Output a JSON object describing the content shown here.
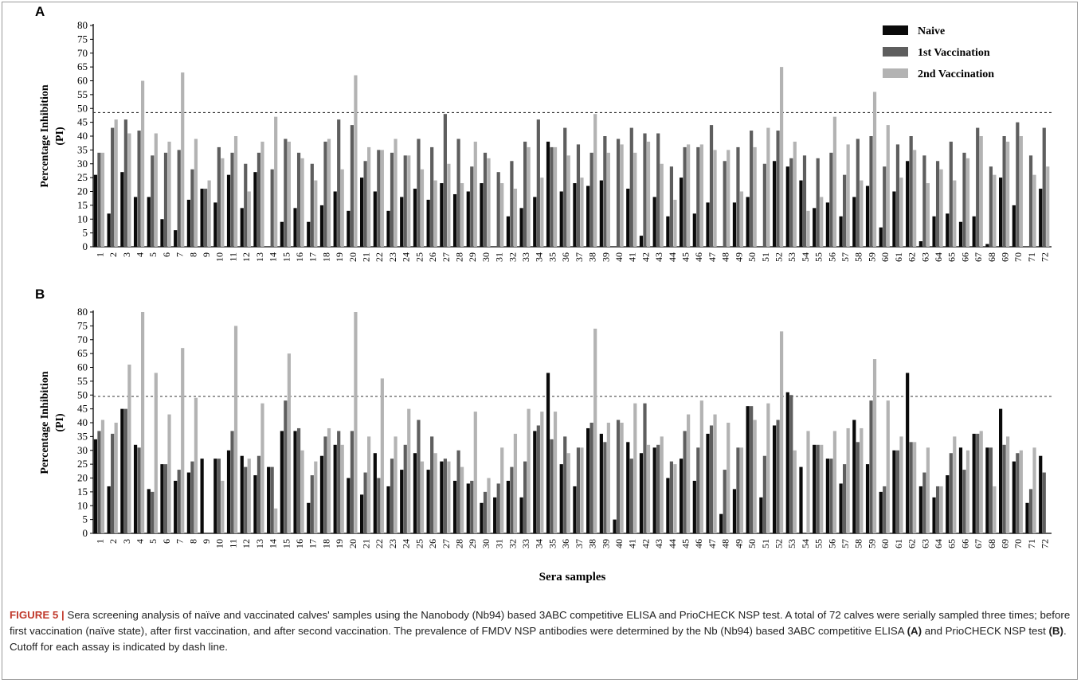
{
  "caption": {
    "figure_label": "FIGURE 5 |",
    "text_1": " Sera screening analysis of naïve and vaccinated calves' samples using the Nanobody (Nb94) based 3ABC competitive ELISA and PrioCHECK NSP test. A total of 72 calves were serially sampled three times; before first vaccination (naïve state), after first vaccination, and after second vaccination. The prevalence of FMDV NSP antibodies were determined by the Nb (Nb94) based 3ABC competitive ELISA ",
    "ref_a": "(A)",
    "text_2": " and PrioCHECK NSP test ",
    "ref_b": "(B)",
    "text_3": ". Cutoff for each assay is indicated by dash line."
  },
  "colors": {
    "naive": "#0a0a0a",
    "first": "#5e5e5e",
    "second": "#b3b3b3",
    "cutoff": "#333333"
  },
  "chart_data": [
    {
      "panel": "A",
      "type": "bar",
      "ylabel": "Percentage Inhibition\n(PI)",
      "xlabel": "",
      "ylim": [
        0,
        80
      ],
      "yticks": [
        0,
        5,
        10,
        15,
        20,
        25,
        30,
        35,
        40,
        45,
        50,
        55,
        60,
        65,
        70,
        75,
        80
      ],
      "cutoff": 48.5,
      "legend_position": "top-right",
      "categories": [
        "1",
        "2",
        "3",
        "4",
        "5",
        "6",
        "7",
        "8",
        "9",
        "10",
        "11",
        "12",
        "13",
        "14",
        "15",
        "16",
        "17",
        "18",
        "19",
        "20",
        "21",
        "22",
        "23",
        "24",
        "25",
        "26",
        "27",
        "28",
        "29",
        "30",
        "31",
        "32",
        "33",
        "34",
        "35",
        "36",
        "37",
        "38",
        "39",
        "40",
        "41",
        "42",
        "43",
        "44",
        "45",
        "46",
        "47",
        "48",
        "49",
        "50",
        "51",
        "52",
        "53",
        "54",
        "55",
        "56",
        "57",
        "58",
        "59",
        "60",
        "61",
        "62",
        "63",
        "64",
        "65",
        "66",
        "67",
        "68",
        "69",
        "70",
        "71",
        "72"
      ],
      "series": [
        {
          "name": "Naive",
          "values": [
            26,
            12,
            27,
            18,
            18,
            10,
            6,
            17,
            21,
            16,
            26,
            14,
            27,
            0,
            9,
            14,
            9,
            15,
            20,
            13,
            25,
            20,
            13,
            18,
            21,
            17,
            23,
            19,
            20,
            23,
            0,
            11,
            14,
            18,
            38,
            20,
            23,
            22,
            24,
            0,
            21,
            4,
            18,
            11,
            25,
            12,
            16,
            0,
            16,
            18,
            0,
            31,
            29,
            24,
            14,
            16,
            11,
            18,
            22,
            7,
            20,
            31,
            2,
            11,
            12,
            9,
            11,
            1,
            25,
            15,
            0,
            21
          ]
        },
        {
          "name": "1st Vaccination",
          "values": [
            34,
            43,
            46,
            42,
            33,
            34,
            35,
            28,
            21,
            36,
            34,
            30,
            34,
            28,
            39,
            34,
            30,
            38,
            46,
            44,
            31,
            35,
            34,
            33,
            39,
            36,
            48,
            39,
            29,
            34,
            27,
            31,
            38,
            46,
            36,
            43,
            37,
            34,
            40,
            39,
            43,
            41,
            41,
            29,
            36,
            36,
            44,
            31,
            36,
            42,
            30,
            42,
            32,
            33,
            32,
            34,
            26,
            39,
            40,
            29,
            37,
            40,
            33,
            31,
            38,
            34,
            43,
            29,
            40,
            45,
            33,
            43
          ]
        },
        {
          "name": "2nd Vaccination",
          "values": [
            34,
            46,
            41,
            60,
            41,
            38,
            63,
            39,
            24,
            32,
            40,
            20,
            38,
            47,
            38,
            32,
            24,
            39,
            28,
            62,
            36,
            35,
            39,
            33,
            28,
            24,
            30,
            23,
            38,
            32,
            23,
            21,
            36,
            25,
            36,
            33,
            25,
            48,
            34,
            37,
            34,
            38,
            30,
            17,
            37,
            37,
            35,
            35,
            20,
            36,
            43,
            65,
            38,
            13,
            18,
            47,
            37,
            24,
            56,
            44,
            25,
            35,
            23,
            28,
            24,
            32,
            40,
            26,
            38,
            40,
            26,
            29
          ]
        }
      ]
    },
    {
      "panel": "B",
      "type": "bar",
      "ylabel": "Percentage Inhibition\n(PI)",
      "xlabel": "Sera samples",
      "ylim": [
        0,
        80
      ],
      "yticks": [
        0,
        5,
        10,
        15,
        20,
        25,
        30,
        35,
        40,
        45,
        50,
        55,
        60,
        65,
        70,
        75,
        80
      ],
      "cutoff": 49.5,
      "categories": [
        "1",
        "2",
        "3",
        "4",
        "5",
        "6",
        "7",
        "8",
        "9",
        "10",
        "11",
        "12",
        "13",
        "14",
        "15",
        "16",
        "17",
        "18",
        "19",
        "20",
        "21",
        "22",
        "23",
        "24",
        "25",
        "26",
        "27",
        "28",
        "29",
        "30",
        "31",
        "32",
        "33",
        "34",
        "35",
        "36",
        "37",
        "38",
        "39",
        "40",
        "41",
        "42",
        "43",
        "44",
        "45",
        "46",
        "47",
        "48",
        "49",
        "50",
        "51",
        "52",
        "53",
        "54",
        "55",
        "56",
        "57",
        "58",
        "59",
        "60",
        "61",
        "62",
        "63",
        "64",
        "65",
        "66",
        "67",
        "68",
        "69",
        "70",
        "71",
        "72"
      ],
      "series": [
        {
          "name": "Naive",
          "values": [
            34,
            17,
            45,
            32,
            16,
            25,
            19,
            22,
            27,
            27,
            30,
            28,
            21,
            24,
            37,
            37,
            11,
            28,
            32,
            20,
            14,
            29,
            17,
            23,
            29,
            23,
            26,
            19,
            18,
            11,
            13,
            19,
            13,
            37,
            58,
            25,
            17,
            38,
            36,
            5,
            33,
            29,
            31,
            20,
            27,
            19,
            36,
            7,
            16,
            46,
            13,
            39,
            51,
            24,
            32,
            27,
            18,
            41,
            25,
            15,
            30,
            58,
            17,
            13,
            21,
            31,
            36,
            31,
            45,
            26,
            11,
            28
          ]
        },
        {
          "name": "1st Vaccination",
          "values": [
            37,
            36,
            45,
            31,
            15,
            25,
            23,
            26,
            0,
            27,
            37,
            24,
            28,
            24,
            48,
            38,
            21,
            35,
            37,
            37,
            22,
            20,
            27,
            32,
            41,
            35,
            27,
            30,
            19,
            15,
            18,
            24,
            26,
            39,
            34,
            35,
            31,
            40,
            33,
            41,
            27,
            47,
            32,
            26,
            37,
            31,
            39,
            23,
            31,
            46,
            28,
            41,
            50,
            0,
            32,
            27,
            25,
            33,
            48,
            17,
            30,
            33,
            22,
            17,
            29,
            23,
            36,
            31,
            32,
            29,
            16,
            22
          ]
        },
        {
          "name": "2nd Vaccination",
          "values": [
            41,
            40,
            61,
            80,
            58,
            43,
            67,
            49,
            0,
            19,
            75,
            27,
            47,
            9,
            65,
            30,
            26,
            38,
            32,
            80,
            35,
            56,
            35,
            45,
            26,
            29,
            26,
            24,
            44,
            20,
            31,
            36,
            45,
            44,
            44,
            29,
            31,
            74,
            40,
            40,
            47,
            32,
            35,
            25,
            43,
            48,
            43,
            40,
            31,
            41,
            47,
            73,
            30,
            37,
            32,
            37,
            38,
            38,
            63,
            48,
            35,
            33,
            31,
            17,
            35,
            30,
            37,
            17,
            35,
            30,
            31,
            0
          ]
        }
      ]
    }
  ]
}
